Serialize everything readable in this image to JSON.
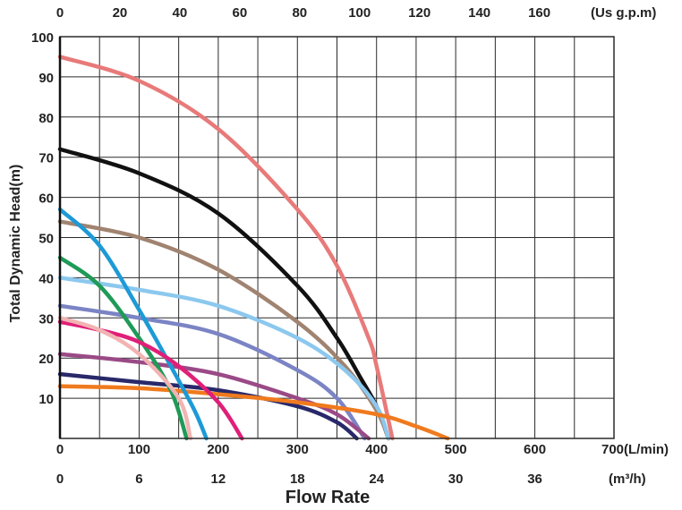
{
  "chart_data": {
    "type": "line",
    "title": "",
    "xlabel": "Flow Rate",
    "ylabel": "Total Dynamic Head(m)",
    "grid": true,
    "legend": "none",
    "x_unit": "L/min",
    "xlim": [
      0,
      700
    ],
    "ylim": [
      0,
      100
    ],
    "y_ticks": [
      "100",
      "90",
      "80",
      "70",
      "60",
      "50",
      "40",
      "30",
      "20",
      "10"
    ],
    "axes": {
      "top": {
        "unit_label": "(Us g.p.m)",
        "ticks": [
          "0",
          "20",
          "40",
          "60",
          "80",
          "100",
          "120",
          "140",
          "160"
        ],
        "values": [
          0,
          20,
          40,
          60,
          80,
          100,
          120,
          140,
          160
        ]
      },
      "lpm": {
        "unit_label": "700(L/min)",
        "ticks": [
          "0",
          "100",
          "200",
          "300",
          "400",
          "500",
          "600"
        ],
        "values": [
          0,
          100,
          200,
          300,
          400,
          500,
          600
        ]
      },
      "m3h": {
        "unit_label": "(m³/h)",
        "ticks": [
          "0",
          "6",
          "12",
          "18",
          "24",
          "30",
          "36"
        ],
        "values": [
          0,
          6,
          12,
          18,
          24,
          30,
          36
        ]
      }
    },
    "series": [
      {
        "color": "#e87a7a",
        "x": [
          0,
          100,
          200,
          300,
          350,
          390,
          400,
          420
        ],
        "y": [
          95,
          89,
          77,
          57,
          43,
          25,
          18,
          0
        ]
      },
      {
        "color": "#111111",
        "x": [
          0,
          100,
          200,
          300,
          350,
          380,
          400,
          415
        ],
        "y": [
          72,
          66,
          56,
          38,
          25,
          15,
          8,
          0
        ]
      },
      {
        "color": "#a08370",
        "x": [
          0,
          100,
          200,
          300,
          360,
          400,
          415
        ],
        "y": [
          54,
          50,
          42,
          29,
          18,
          7,
          0
        ]
      },
      {
        "color": "#8cc8ee",
        "x": [
          0,
          100,
          200,
          300,
          360,
          400,
          415
        ],
        "y": [
          40,
          37,
          33,
          25,
          17,
          8,
          0
        ]
      },
      {
        "color": "#7b84c4",
        "x": [
          0,
          100,
          200,
          300,
          350,
          385
        ],
        "y": [
          33,
          30,
          26,
          17,
          10,
          0
        ]
      },
      {
        "color": "#9a4a86",
        "x": [
          0,
          100,
          200,
          300,
          350,
          390
        ],
        "y": [
          21,
          19,
          16,
          10,
          6,
          0
        ]
      },
      {
        "color": "#28286a",
        "x": [
          0,
          100,
          200,
          300,
          350,
          375
        ],
        "y": [
          16,
          14,
          12,
          8,
          4,
          0
        ]
      },
      {
        "color": "#f07a1e",
        "x": [
          0,
          100,
          200,
          300,
          400,
          450,
          490
        ],
        "y": [
          13,
          12.5,
          11,
          9,
          6,
          3,
          0
        ]
      },
      {
        "color": "#1d9ad6",
        "x": [
          0,
          50,
          100,
          140,
          170,
          185
        ],
        "y": [
          57,
          48,
          32,
          18,
          7,
          0
        ]
      },
      {
        "color": "#1f9a57",
        "x": [
          0,
          50,
          100,
          140,
          160
        ],
        "y": [
          45,
          38,
          25,
          12,
          0
        ]
      },
      {
        "color": "#e01f78",
        "x": [
          0,
          50,
          100,
          150,
          200,
          230
        ],
        "y": [
          29,
          27,
          24,
          18,
          9,
          0
        ]
      },
      {
        "color": "#f2b3b3",
        "x": [
          0,
          50,
          100,
          150,
          165
        ],
        "y": [
          30,
          27,
          21,
          10,
          0
        ]
      }
    ]
  }
}
